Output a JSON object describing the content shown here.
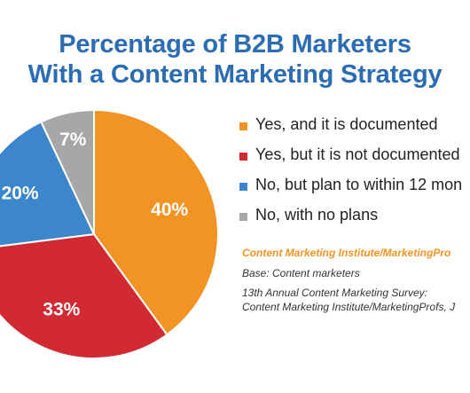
{
  "chart_data": {
    "type": "pie",
    "title_lines": [
      "Percentage of B2B Marketers",
      "With a Content Marketing Strategy"
    ],
    "categories": [
      "Yes, and it is documented",
      "Yes, but it is not documented",
      "No, but plan to within 12 mon",
      "No, with no plans"
    ],
    "values": [
      40,
      33,
      20,
      7
    ],
    "value_labels": [
      "40%",
      "33%",
      "20%",
      "7%"
    ],
    "colors": [
      "#f29423",
      "#d12a33",
      "#3c87cb",
      "#a6a7a9"
    ],
    "legend_position": "right"
  },
  "source": {
    "org": "Content Marketing Institute/MarketingPro",
    "base": "Base: Content marketers",
    "survey_line1": "13th Annual Content Marketing Survey:",
    "survey_line2": "Content Marketing Institute/MarketingProfs, J"
  }
}
